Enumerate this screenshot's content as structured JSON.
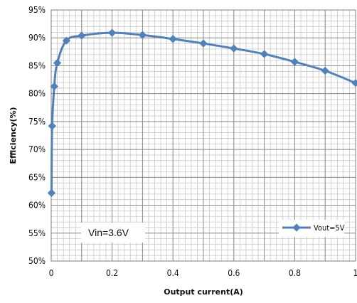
{
  "chart_data": {
    "type": "line",
    "title": "",
    "xlabel": "Output current(A)",
    "ylabel": "Efficiency(%)",
    "xlim": [
      0,
      1
    ],
    "ylim": [
      50,
      95
    ],
    "x_ticks": [
      "0",
      "0.2",
      "0.4",
      "0.6",
      "0.8",
      "1"
    ],
    "y_ticks": [
      "50%",
      "55%",
      "60%",
      "65%",
      "70%",
      "75%",
      "80%",
      "85%",
      "90%",
      "95%"
    ],
    "grid": true,
    "legend_position": "bottom-right",
    "annotation": "Vin=3.6V",
    "series": [
      {
        "name": "Vout=5V",
        "color": "#4f81bd",
        "x": [
          0.001,
          0.003,
          0.01,
          0.02,
          0.05,
          0.1,
          0.2,
          0.3,
          0.4,
          0.5,
          0.6,
          0.7,
          0.8,
          0.9,
          1.0
        ],
        "y": [
          62.2,
          74.2,
          81.3,
          85.5,
          89.5,
          90.4,
          90.9,
          90.5,
          89.8,
          89.0,
          88.1,
          87.1,
          85.7,
          84.1,
          81.9
        ]
      }
    ]
  }
}
